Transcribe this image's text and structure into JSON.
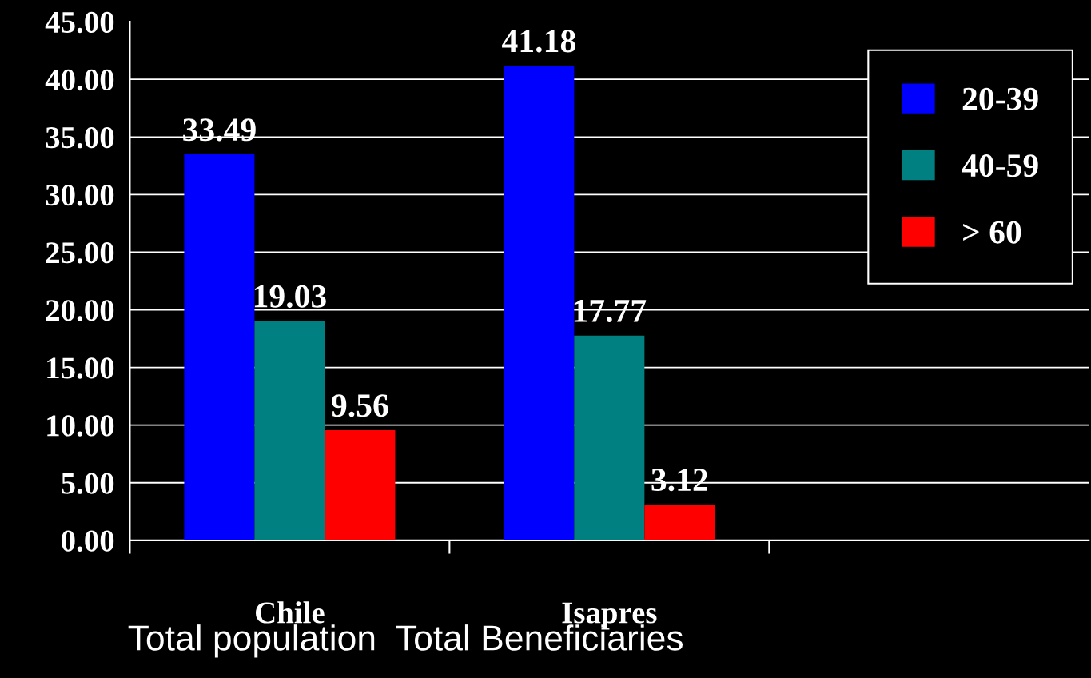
{
  "chart_data": {
    "type": "bar",
    "categories": [
      "Chile",
      "Isapres",
      null
    ],
    "series": [
      {
        "name": "20-39",
        "color": "#0000ff",
        "values": [
          33.49,
          41.18,
          null
        ]
      },
      {
        "name": "40-59",
        "color": "#008080",
        "values": [
          19.03,
          17.77,
          null
        ]
      },
      {
        "name": "> 60",
        "color": "#ff0000",
        "values": [
          9.56,
          3.12,
          null
        ]
      }
    ],
    "ylim": [
      0,
      45
    ],
    "yticks": [
      {
        "value": 0,
        "label": "0.00"
      },
      {
        "value": 5,
        "label": "5.00"
      },
      {
        "value": 10,
        "label": "10.00"
      },
      {
        "value": 15,
        "label": "15.00"
      },
      {
        "value": 20,
        "label": "20.00"
      },
      {
        "value": 25,
        "label": "25.00"
      },
      {
        "value": 30,
        "label": "30.00"
      },
      {
        "value": 35,
        "label": "35.00"
      },
      {
        "value": 40,
        "label": "40.00"
      },
      {
        "value": 45,
        "label": "45.00"
      }
    ],
    "grid": "y",
    "legend": "right",
    "data_labels": true,
    "annotations": [
      "Total population  Total Beneficiaries"
    ]
  }
}
